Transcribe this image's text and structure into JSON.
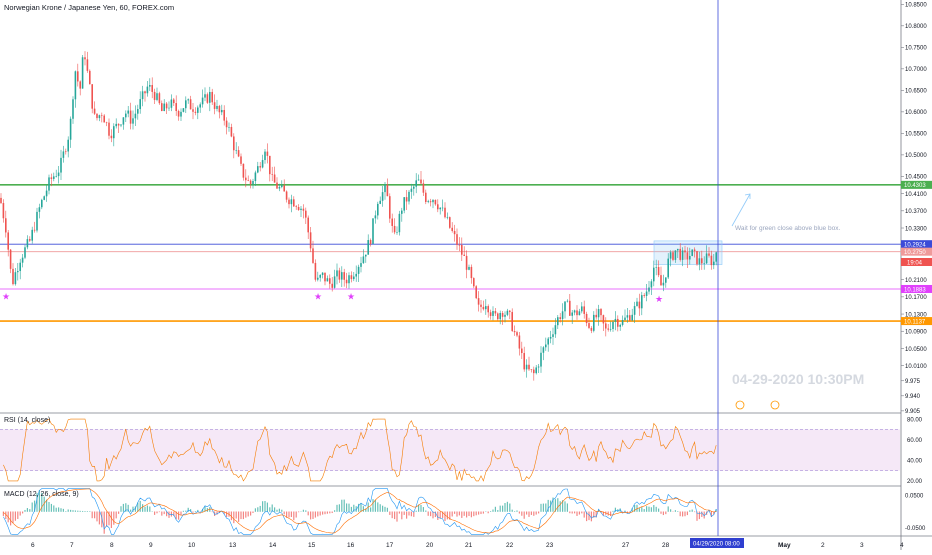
{
  "header": {
    "title": "Norwegian Krone / Japanese Yen, 60, FOREX.com"
  },
  "rsi": {
    "label": "RSI (14, close)",
    "ticks": [
      "80.00",
      "60.00",
      "40.00",
      "20.00"
    ]
  },
  "macd": {
    "label": "MACD (12, 26, close, 9)",
    "ticks": [
      "0.0500",
      "-0.0500"
    ]
  },
  "annotation": {
    "text": "Wait for green close above blue box."
  },
  "watermark": {
    "text": "04-29-2020 10:30PM"
  },
  "cursor": {
    "date_label": "04/29/2020",
    "time_label": "08:00"
  },
  "colors": {
    "up": "#26a69a",
    "down": "#ef5350",
    "support_green": "#4caf50",
    "resistance_blue": "#3b4bd8",
    "magenta": "#e040fb",
    "orange": "#ff9800",
    "rsi_line": "#f57c00",
    "macd_line": "#2196f3",
    "signal_line": "#ff6d00",
    "box": "#90caf9",
    "price_tag": "#ef5350"
  },
  "chart_data": {
    "type": "candlestick",
    "symbol": "Norwegian Krone / Japanese Yen",
    "interval": "60",
    "x_labels": [
      "6",
      "7",
      "8",
      "9",
      "10",
      "13",
      "14",
      "15",
      "16",
      "17",
      "20",
      "21",
      "22",
      "23",
      "27",
      "28",
      "May",
      "2",
      "3",
      "4"
    ],
    "y_ticks": [
      10.85,
      10.8,
      10.75,
      10.7,
      10.65,
      10.6,
      10.55,
      10.5,
      10.45,
      10.41,
      10.37,
      10.33,
      10.29,
      10.25,
      10.21,
      10.17,
      10.13,
      10.09,
      10.05,
      10.01,
      9.975,
      9.94,
      9.905
    ],
    "ylim": [
      9.9,
      10.86
    ],
    "levels": [
      {
        "value": 10.4303,
        "label": "10.4303",
        "color": "#4caf50"
      },
      {
        "value": 10.2924,
        "label": "10.2924",
        "color": "#3b4bd8"
      },
      {
        "value": 10.275,
        "label": "10.2750",
        "color": "#ef9a9a"
      },
      {
        "value": 10.1883,
        "label": "10.1883",
        "color": "#e040fb"
      },
      {
        "value": 10.1137,
        "label": "10.1137",
        "color": "#ff9800"
      }
    ],
    "current_price": {
      "value": 10.251,
      "label": "19:04"
    },
    "path": [
      [
        0,
        10.4
      ],
      [
        6,
        10.33
      ],
      [
        12,
        10.2
      ],
      [
        20,
        10.26
      ],
      [
        30,
        10.3
      ],
      [
        40,
        10.38
      ],
      [
        50,
        10.44
      ],
      [
        60,
        10.47
      ],
      [
        70,
        10.56
      ],
      [
        75,
        10.7
      ],
      [
        80,
        10.65
      ],
      [
        84,
        10.75
      ],
      [
        88,
        10.68
      ],
      [
        95,
        10.58
      ],
      [
        102,
        10.6
      ],
      [
        110,
        10.55
      ],
      [
        118,
        10.57
      ],
      [
        125,
        10.6
      ],
      [
        132,
        10.58
      ],
      [
        140,
        10.62
      ],
      [
        148,
        10.66
      ],
      [
        155,
        10.64
      ],
      [
        162,
        10.6
      ],
      [
        170,
        10.62
      ],
      [
        178,
        10.6
      ],
      [
        186,
        10.62
      ],
      [
        194,
        10.61
      ],
      [
        202,
        10.62
      ],
      [
        210,
        10.64
      ],
      [
        218,
        10.6
      ],
      [
        226,
        10.58
      ],
      [
        234,
        10.52
      ],
      [
        242,
        10.46
      ],
      [
        250,
        10.43
      ],
      [
        258,
        10.47
      ],
      [
        265,
        10.52
      ],
      [
        272,
        10.44
      ],
      [
        280,
        10.42
      ],
      [
        288,
        10.4
      ],
      [
        296,
        10.39
      ],
      [
        304,
        10.37
      ],
      [
        310,
        10.3
      ],
      [
        316,
        10.2
      ],
      [
        322,
        10.22
      ],
      [
        330,
        10.2
      ],
      [
        338,
        10.22
      ],
      [
        346,
        10.21
      ],
      [
        354,
        10.23
      ],
      [
        362,
        10.26
      ],
      [
        370,
        10.3
      ],
      [
        378,
        10.4
      ],
      [
        386,
        10.42
      ],
      [
        394,
        10.3
      ],
      [
        402,
        10.38
      ],
      [
        410,
        10.41
      ],
      [
        418,
        10.44
      ],
      [
        426,
        10.4
      ],
      [
        434,
        10.4
      ],
      [
        442,
        10.37
      ],
      [
        450,
        10.33
      ],
      [
        458,
        10.29
      ],
      [
        466,
        10.25
      ],
      [
        472,
        10.2
      ],
      [
        478,
        10.14
      ],
      [
        486,
        10.16
      ],
      [
        494,
        10.12
      ],
      [
        502,
        10.14
      ],
      [
        510,
        10.12
      ],
      [
        518,
        10.06
      ],
      [
        526,
        10.0
      ],
      [
        534,
        9.99
      ],
      [
        542,
        10.04
      ],
      [
        550,
        10.08
      ],
      [
        558,
        10.12
      ],
      [
        566,
        10.15
      ],
      [
        574,
        10.13
      ],
      [
        582,
        10.14
      ],
      [
        590,
        10.1
      ],
      [
        598,
        10.13
      ],
      [
        606,
        10.09
      ],
      [
        614,
        10.12
      ],
      [
        622,
        10.11
      ],
      [
        630,
        10.13
      ],
      [
        638,
        10.15
      ],
      [
        646,
        10.18
      ],
      [
        654,
        10.24
      ],
      [
        662,
        10.19
      ],
      [
        668,
        10.25
      ],
      [
        676,
        10.28
      ],
      [
        684,
        10.26
      ],
      [
        692,
        10.27
      ],
      [
        700,
        10.25
      ],
      [
        708,
        10.26
      ],
      [
        714,
        10.25
      ],
      [
        718,
        10.3
      ]
    ],
    "rsi_ticks": [
      80,
      60,
      40,
      20
    ],
    "macd_ticks": [
      0.05,
      -0.05
    ]
  }
}
